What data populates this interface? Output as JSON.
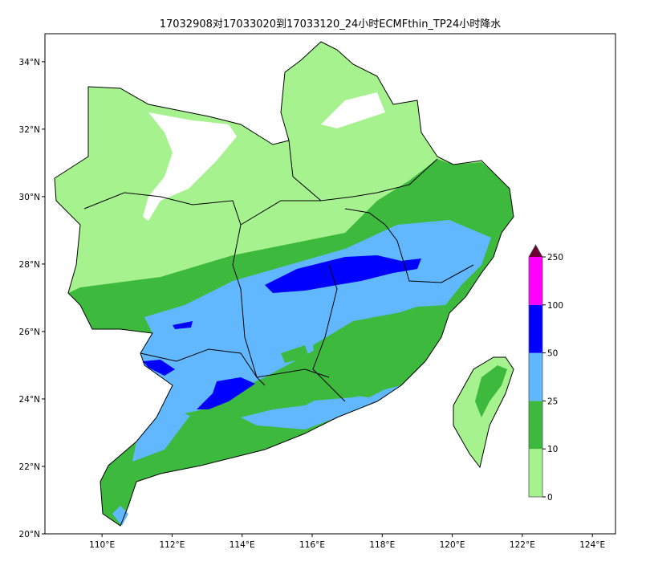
{
  "title": "17032908对17033020到17033120_24小时ECMFthin_TP24小时降水",
  "map": {
    "lon_ticks": [
      "110°E",
      "112°E",
      "114°E",
      "116°E",
      "118°E",
      "120°E",
      "122°E",
      "124°E"
    ],
    "lon_values": [
      110,
      112,
      114,
      116,
      118,
      120,
      122,
      124
    ],
    "lat_ticks": [
      "34°N",
      "32°N",
      "30°N",
      "28°N",
      "26°N",
      "24°N",
      "22°N",
      "20°N"
    ],
    "lat_values": [
      34,
      32,
      30,
      28,
      26,
      24,
      22,
      20
    ],
    "extent": {
      "lon": [
        108.37,
        124.66
      ],
      "lat": [
        20,
        34.83
      ]
    }
  },
  "colorbar": {
    "levels": [
      "0",
      "10",
      "25",
      "50",
      "100",
      "250"
    ],
    "colors": [
      "#a6f28f",
      "#3dba3d",
      "#61b8ff",
      "#0000ff",
      "#ff00fc",
      "#6b0032"
    ],
    "extend": "max"
  }
}
